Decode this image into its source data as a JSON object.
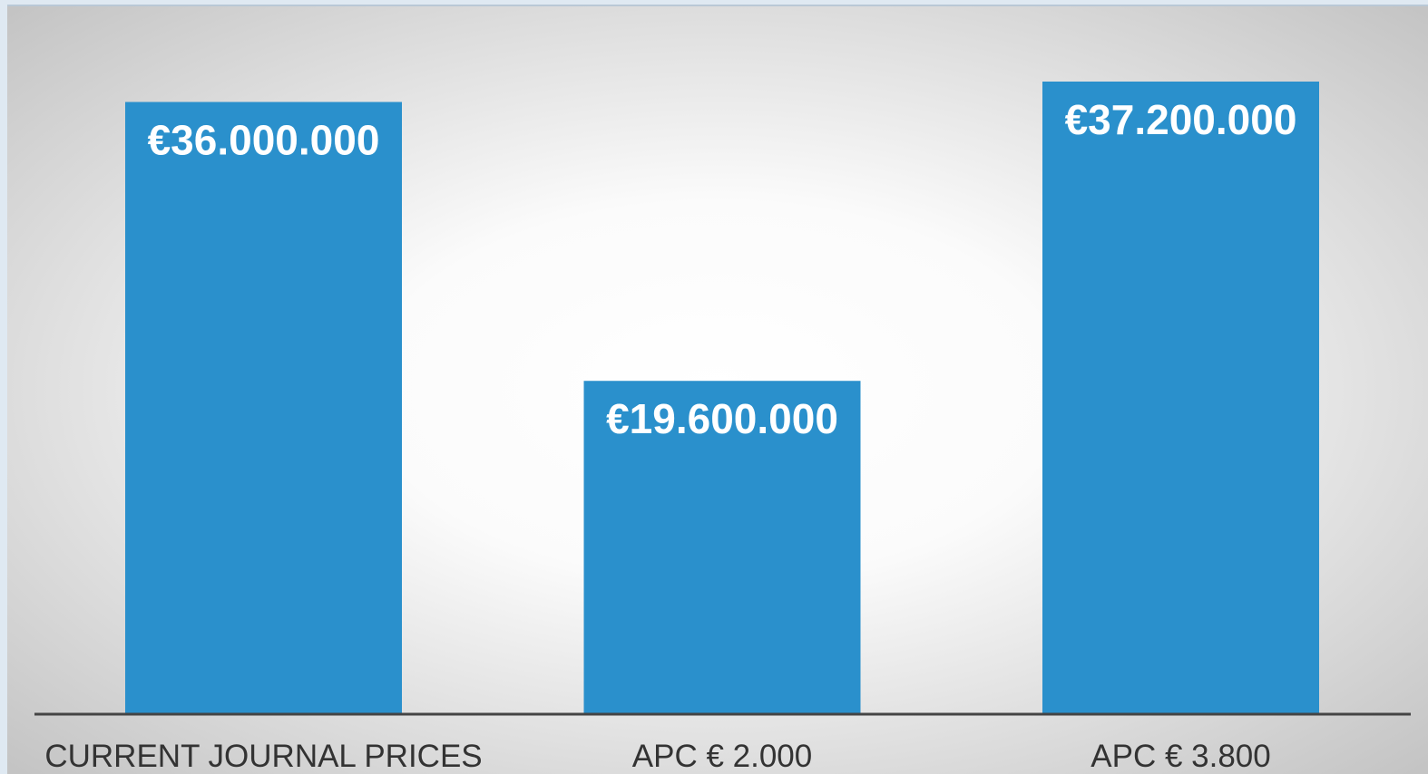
{
  "chart_data": {
    "type": "bar",
    "categories": [
      "CURRENT JOURNAL PRICES",
      "APC € 2.000",
      "APC € 3.800"
    ],
    "values": [
      36000000,
      19600000,
      37200000
    ],
    "value_labels": [
      "€36.000.000",
      "€19.600.000",
      "€37.200.000"
    ],
    "color": "#2a90cc"
  }
}
